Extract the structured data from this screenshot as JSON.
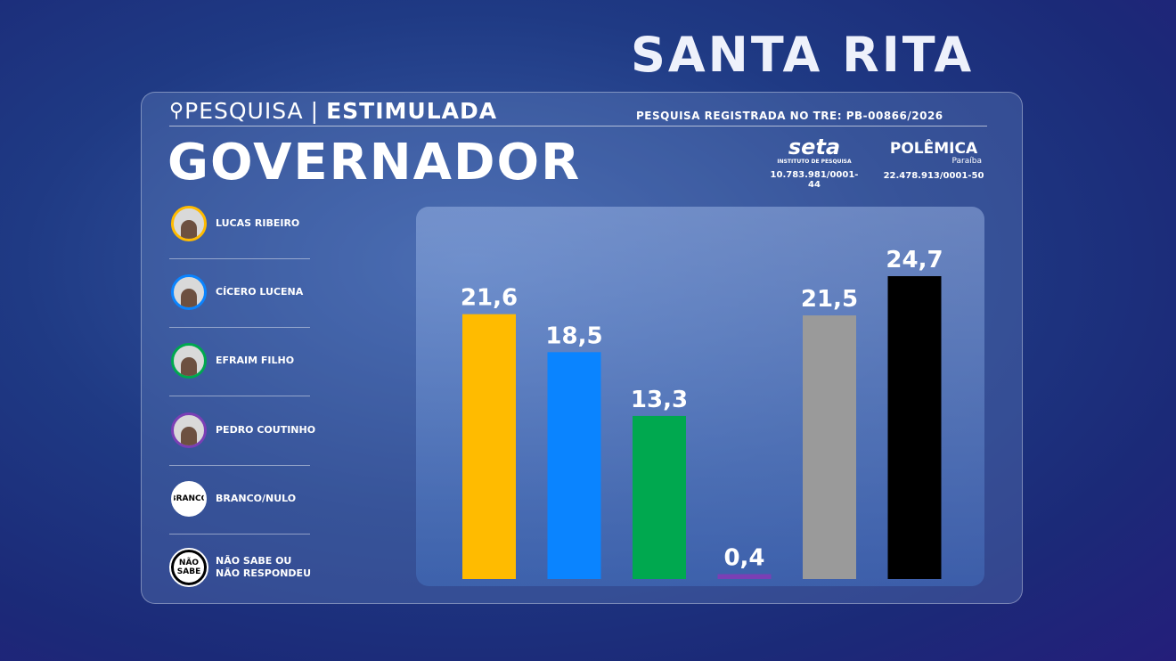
{
  "header": {
    "city": "SANTA RITA",
    "survey": "PESQUISA",
    "survey_kind": "ESTIMULADA",
    "registration": "PESQUISA REGISTRADA NO TRE: PB-00866/2026",
    "office": "GOVERNADOR"
  },
  "logos": [
    {
      "name": "seta",
      "subtitle": "INSTITUTO DE PESQUISA",
      "id": "10.783.981/0001-44"
    },
    {
      "name": "POLÊMICA",
      "subtitle": "Paraíba",
      "id": "22.478.913/0001-50"
    }
  ],
  "chart_data": {
    "type": "bar",
    "categories": [
      "LUCAS RIBEIRO",
      "CÍCERO LUCENA",
      "EFRAIM FILHO",
      "PEDRO COUTINHO",
      "BRANCO/NULO",
      "NÃO SABE OU\nNÃO RESPONDEU"
    ],
    "icon_labels": [
      null,
      null,
      null,
      null,
      "BRANCO",
      "NÃO\nSABE"
    ],
    "values": [
      21.6,
      18.5,
      13.3,
      0.4,
      21.5,
      24.7
    ],
    "value_labels": [
      "21,6",
      "18,5",
      "13,3",
      "0,4",
      "21,5",
      "24,7"
    ],
    "colors": [
      "#ffbb00",
      "#0a84ff",
      "#00a84f",
      "#7b3fb5",
      "#9a9a9a",
      "#000000"
    ]
  }
}
